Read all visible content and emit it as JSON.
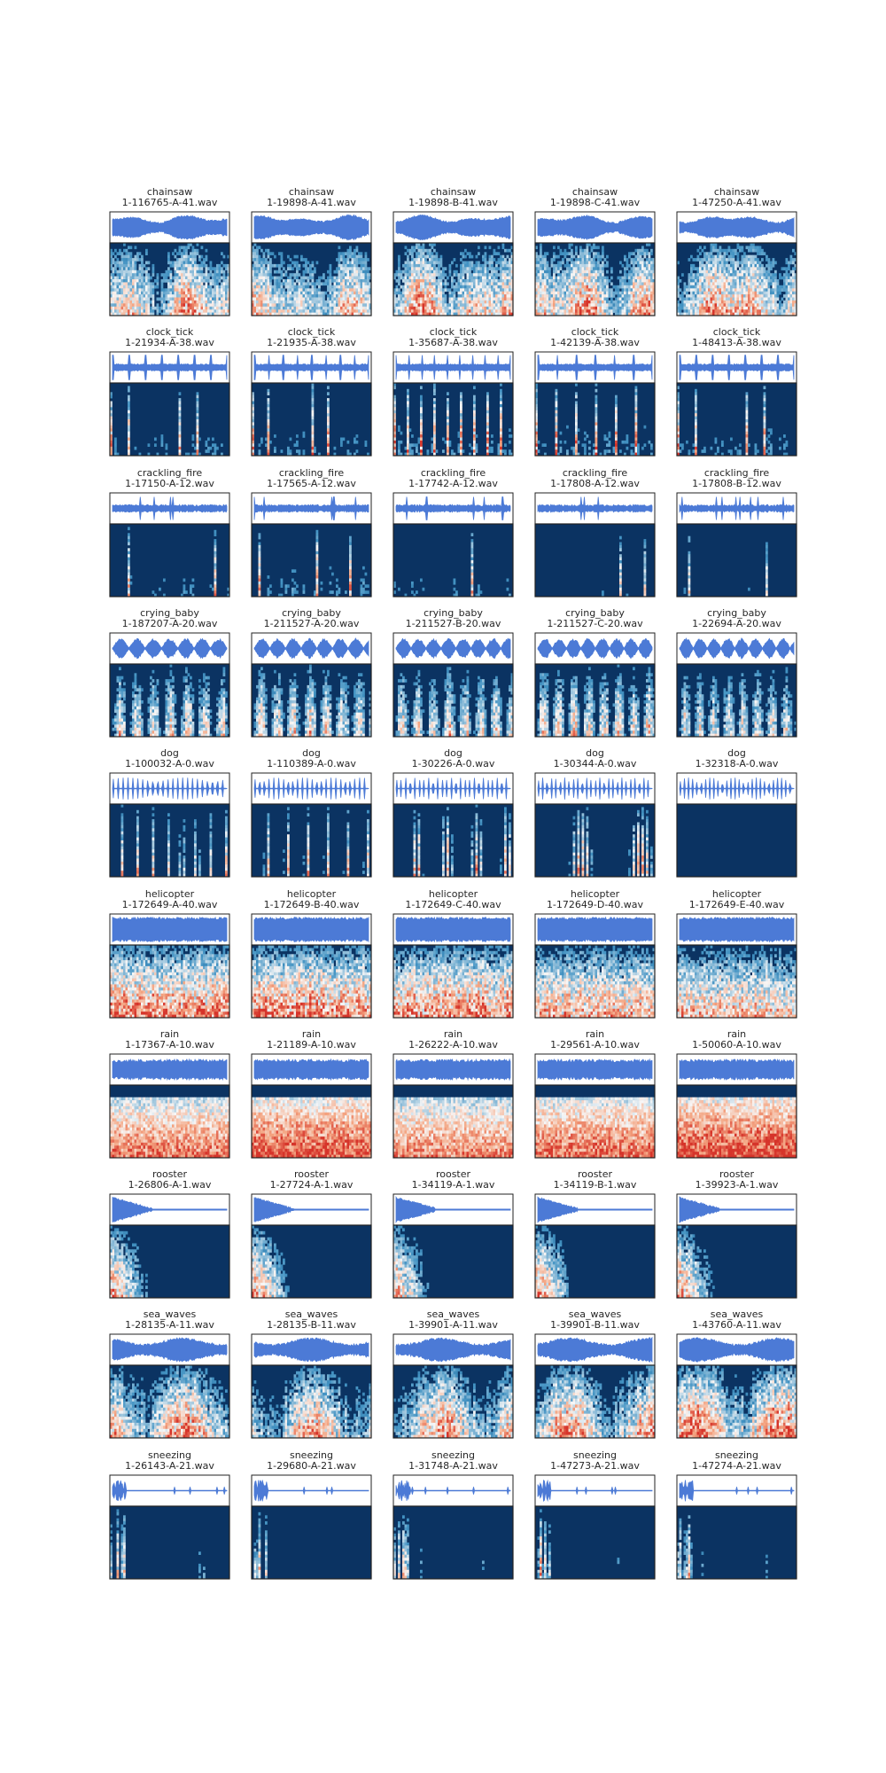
{
  "colors": {
    "waveform": "#4c7ad6",
    "spectrogram_background": "#0b3362",
    "spectrogram_mid": "#ffffff",
    "spectrogram_high": "#d6342a",
    "frame": "#222222"
  },
  "chart_data": {
    "type": "waveform_spectrogram_grid",
    "rows": 10,
    "columns": 5,
    "colormap": "RdBu_r",
    "panels": [
      {
        "category": "chainsaw",
        "file": "1-116765-A-41.wav",
        "profile": "continuous",
        "energy": 0.45
      },
      {
        "category": "chainsaw",
        "file": "1-19898-A-41.wav",
        "profile": "continuous",
        "energy": 0.35
      },
      {
        "category": "chainsaw",
        "file": "1-19898-B-41.wav",
        "profile": "continuous",
        "energy": 0.5
      },
      {
        "category": "chainsaw",
        "file": "1-19898-C-41.wav",
        "profile": "continuous",
        "energy": 0.55
      },
      {
        "category": "chainsaw",
        "file": "1-47250-A-41.wav",
        "profile": "continuous",
        "energy": 0.6
      },
      {
        "category": "clock_tick",
        "file": "1-21934-A-38.wav",
        "profile": "ticks",
        "energy": 0.3
      },
      {
        "category": "clock_tick",
        "file": "1-21935-A-38.wav",
        "profile": "ticks",
        "energy": 0.35
      },
      {
        "category": "clock_tick",
        "file": "1-35687-A-38.wav",
        "profile": "ticks",
        "energy": 0.4
      },
      {
        "category": "clock_tick",
        "file": "1-42139-A-38.wav",
        "profile": "ticks",
        "energy": 0.4
      },
      {
        "category": "clock_tick",
        "file": "1-48413-A-38.wav",
        "profile": "ticks",
        "energy": 0.35
      },
      {
        "category": "crackling_fire",
        "file": "1-17150-A-12.wav",
        "profile": "crackle",
        "energy": 0.25
      },
      {
        "category": "crackling_fire",
        "file": "1-17565-A-12.wav",
        "profile": "crackle",
        "energy": 0.35
      },
      {
        "category": "crackling_fire",
        "file": "1-17742-A-12.wav",
        "profile": "crackle",
        "energy": 0.25
      },
      {
        "category": "crackling_fire",
        "file": "1-17808-A-12.wav",
        "profile": "crackle",
        "energy": 0.1
      },
      {
        "category": "crackling_fire",
        "file": "1-17808-B-12.wav",
        "profile": "crackle",
        "energy": 0.1
      },
      {
        "category": "crying_baby",
        "file": "1-187207-A-20.wav",
        "profile": "harmonic",
        "energy": 0.4
      },
      {
        "category": "crying_baby",
        "file": "1-211527-A-20.wav",
        "profile": "harmonic",
        "energy": 0.45
      },
      {
        "category": "crying_baby",
        "file": "1-211527-B-20.wav",
        "profile": "harmonic",
        "energy": 0.4
      },
      {
        "category": "crying_baby",
        "file": "1-211527-C-20.wav",
        "profile": "harmonic",
        "energy": 0.45
      },
      {
        "category": "crying_baby",
        "file": "1-22694-A-20.wav",
        "profile": "harmonic",
        "energy": 0.35
      },
      {
        "category": "dog",
        "file": "1-100032-A-0.wav",
        "profile": "barks",
        "energy": 0.3
      },
      {
        "category": "dog",
        "file": "1-110389-A-0.wav",
        "profile": "barks",
        "energy": 0.3
      },
      {
        "category": "dog",
        "file": "1-30226-A-0.wav",
        "profile": "barks",
        "energy": 0.4
      },
      {
        "category": "dog",
        "file": "1-30344-A-0.wav",
        "profile": "barks",
        "energy": 0.4
      },
      {
        "category": "dog",
        "file": "1-32318-A-0.wav",
        "profile": "barks",
        "energy": 0.35
      },
      {
        "category": "helicopter",
        "file": "1-172649-A-40.wav",
        "profile": "hum",
        "energy": 0.5
      },
      {
        "category": "helicopter",
        "file": "1-172649-B-40.wav",
        "profile": "hum",
        "energy": 0.5
      },
      {
        "category": "helicopter",
        "file": "1-172649-C-40.wav",
        "profile": "hum",
        "energy": 0.45
      },
      {
        "category": "helicopter",
        "file": "1-172649-D-40.wav",
        "profile": "hum",
        "energy": 0.35
      },
      {
        "category": "helicopter",
        "file": "1-172649-E-40.wav",
        "profile": "hum",
        "energy": 0.3
      },
      {
        "category": "rain",
        "file": "1-17367-A-10.wav",
        "profile": "broadband",
        "energy": 0.6
      },
      {
        "category": "rain",
        "file": "1-21189-A-10.wav",
        "profile": "broadband",
        "energy": 0.75
      },
      {
        "category": "rain",
        "file": "1-26222-A-10.wav",
        "profile": "broadband",
        "energy": 0.55
      },
      {
        "category": "rain",
        "file": "1-29561-A-10.wav",
        "profile": "broadband",
        "energy": 0.65
      },
      {
        "category": "rain",
        "file": "1-50060-A-10.wav",
        "profile": "broadband",
        "energy": 0.8
      },
      {
        "category": "rooster",
        "file": "1-26806-A-1.wav",
        "profile": "crow",
        "energy": 0.4
      },
      {
        "category": "rooster",
        "file": "1-27724-A-1.wav",
        "profile": "crow",
        "energy": 0.45
      },
      {
        "category": "rooster",
        "file": "1-34119-A-1.wav",
        "profile": "crow",
        "energy": 0.4
      },
      {
        "category": "rooster",
        "file": "1-34119-B-1.wav",
        "profile": "crow",
        "energy": 0.45
      },
      {
        "category": "rooster",
        "file": "1-39923-A-1.wav",
        "profile": "crow",
        "energy": 0.4
      },
      {
        "category": "sea_waves",
        "file": "1-28135-A-11.wav",
        "profile": "waves",
        "energy": 0.55
      },
      {
        "category": "sea_waves",
        "file": "1-28135-B-11.wav",
        "profile": "waves",
        "energy": 0.4
      },
      {
        "category": "sea_waves",
        "file": "1-39901-A-11.wav",
        "profile": "waves",
        "energy": 0.5
      },
      {
        "category": "sea_waves",
        "file": "1-39901-B-11.wav",
        "profile": "waves",
        "energy": 0.5
      },
      {
        "category": "sea_waves",
        "file": "1-43760-A-11.wav",
        "profile": "waves",
        "energy": 0.65
      },
      {
        "category": "sneezing",
        "file": "1-26143-A-21.wav",
        "profile": "burst",
        "energy": 0.4
      },
      {
        "category": "sneezing",
        "file": "1-29680-A-21.wav",
        "profile": "burst",
        "energy": 0.3
      },
      {
        "category": "sneezing",
        "file": "1-31748-A-21.wav",
        "profile": "burst",
        "energy": 0.4
      },
      {
        "category": "sneezing",
        "file": "1-47273-A-21.wav",
        "profile": "burst",
        "energy": 0.45
      },
      {
        "category": "sneezing",
        "file": "1-47274-A-21.wav",
        "profile": "burst",
        "energy": 0.4
      }
    ]
  }
}
